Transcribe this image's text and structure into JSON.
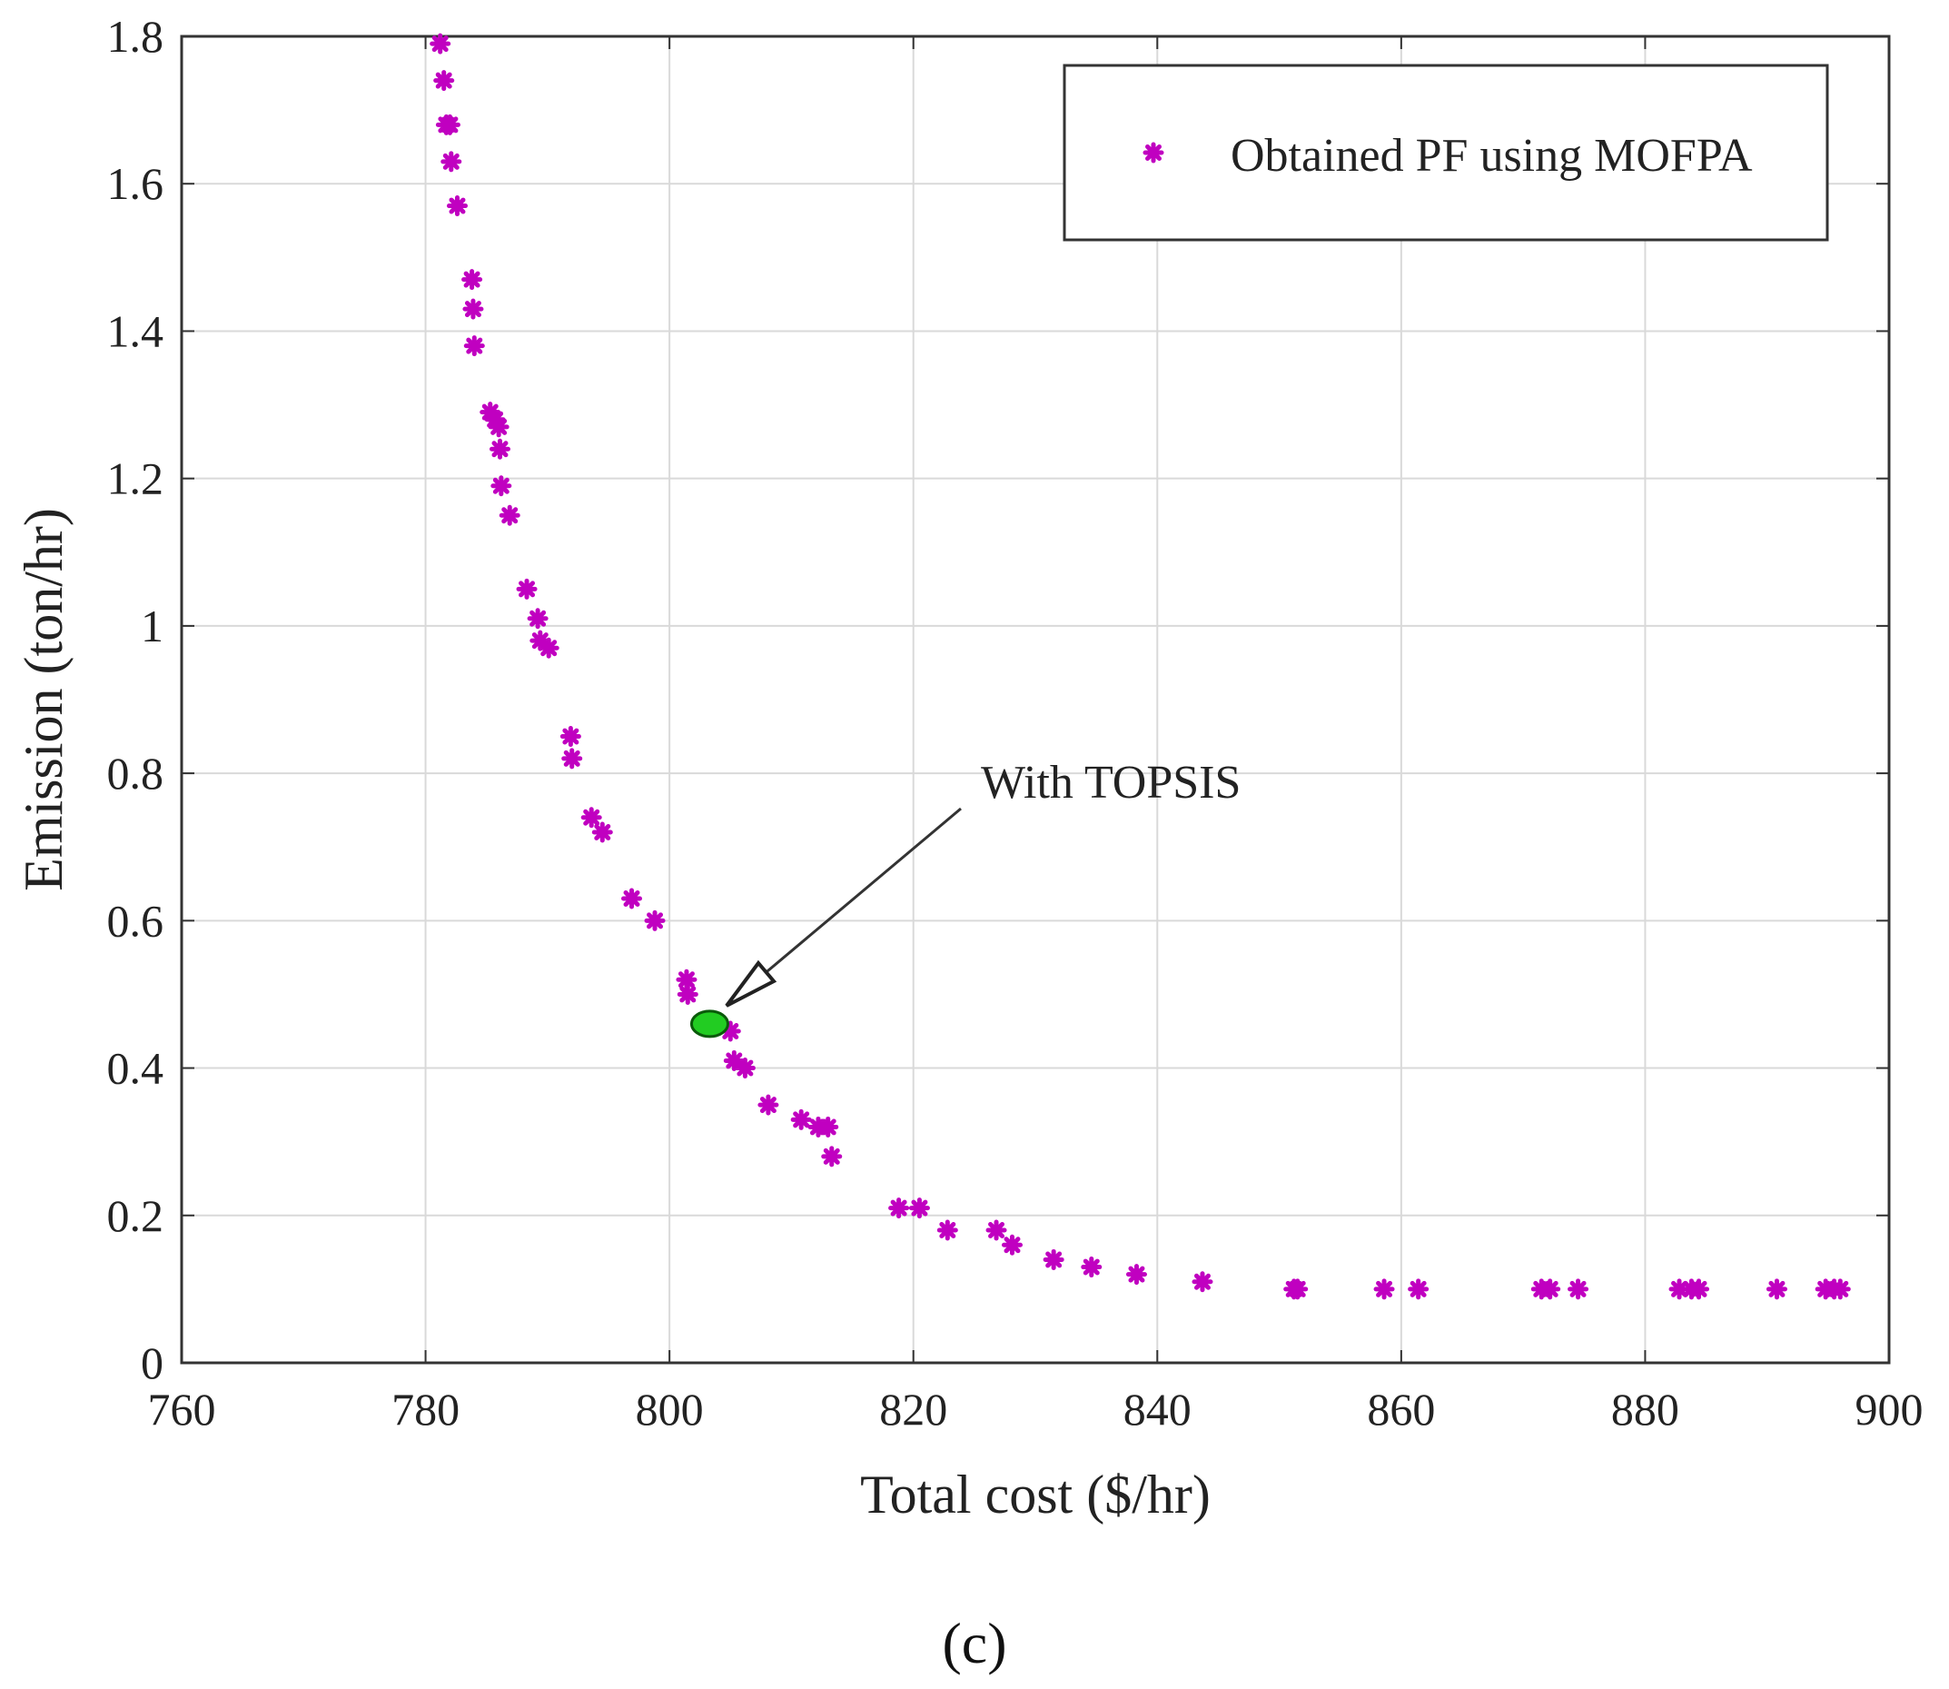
{
  "chart_data": {
    "type": "scatter",
    "xlabel": "Total cost ($/hr)",
    "ylabel": "Emission (ton/hr)",
    "xlim": [
      760,
      900
    ],
    "ylim": [
      0,
      1.8
    ],
    "xticks": [
      760,
      780,
      800,
      820,
      840,
      860,
      880,
      900
    ],
    "yticks": [
      0,
      0.2,
      0.4,
      0.6,
      0.8,
      1,
      1.2,
      1.4,
      1.6,
      1.8
    ],
    "ytick_labels": [
      "0",
      "0.2",
      "0.4",
      "0.6",
      "0.8",
      "1",
      "1.2",
      "1.4",
      "1.6",
      "1.8"
    ],
    "grid": true,
    "legend": {
      "position": "top-right",
      "entries": [
        "Obtained PF using MOFPA"
      ]
    },
    "series": [
      {
        "name": "Obtained PF using MOFPA",
        "marker": "asterisk",
        "color": "#c000c0",
        "points": [
          [
            781.2,
            1.79
          ],
          [
            781.5,
            1.74
          ],
          [
            781.7,
            1.68
          ],
          [
            782.0,
            1.68
          ],
          [
            782.1,
            1.63
          ],
          [
            782.6,
            1.57
          ],
          [
            783.8,
            1.47
          ],
          [
            783.9,
            1.43
          ],
          [
            784.0,
            1.38
          ],
          [
            785.3,
            1.29
          ],
          [
            785.7,
            1.28
          ],
          [
            786.0,
            1.27
          ],
          [
            786.1,
            1.24
          ],
          [
            786.2,
            1.19
          ],
          [
            786.9,
            1.15
          ],
          [
            788.3,
            1.05
          ],
          [
            789.2,
            1.01
          ],
          [
            789.4,
            0.98
          ],
          [
            790.1,
            0.97
          ],
          [
            791.9,
            0.85
          ],
          [
            792.0,
            0.82
          ],
          [
            793.6,
            0.74
          ],
          [
            794.5,
            0.72
          ],
          [
            796.9,
            0.63
          ],
          [
            798.8,
            0.6
          ],
          [
            801.4,
            0.52
          ],
          [
            801.5,
            0.5
          ],
          [
            805.0,
            0.45
          ],
          [
            805.3,
            0.41
          ],
          [
            806.2,
            0.4
          ],
          [
            808.1,
            0.35
          ],
          [
            810.8,
            0.33
          ],
          [
            812.2,
            0.32
          ],
          [
            813.0,
            0.32
          ],
          [
            813.3,
            0.28
          ],
          [
            818.8,
            0.21
          ],
          [
            820.5,
            0.21
          ],
          [
            822.8,
            0.18
          ],
          [
            826.8,
            0.18
          ],
          [
            828.1,
            0.16
          ],
          [
            831.5,
            0.14
          ],
          [
            834.6,
            0.13
          ],
          [
            838.3,
            0.12
          ],
          [
            843.7,
            0.11
          ],
          [
            851.2,
            0.1
          ],
          [
            851.5,
            0.1
          ],
          [
            858.6,
            0.1
          ],
          [
            861.4,
            0.1
          ],
          [
            871.5,
            0.1
          ],
          [
            872.2,
            0.1
          ],
          [
            874.5,
            0.1
          ],
          [
            882.8,
            0.1
          ],
          [
            883.8,
            0.1
          ],
          [
            884.4,
            0.1
          ],
          [
            890.8,
            0.1
          ],
          [
            894.8,
            0.1
          ],
          [
            895.5,
            0.1
          ],
          [
            896.0,
            0.1
          ]
        ]
      }
    ],
    "highlight": {
      "label": "With TOPSIS",
      "point": [
        803.3,
        0.46
      ],
      "color": "#22cc22"
    }
  },
  "caption": "(c)"
}
